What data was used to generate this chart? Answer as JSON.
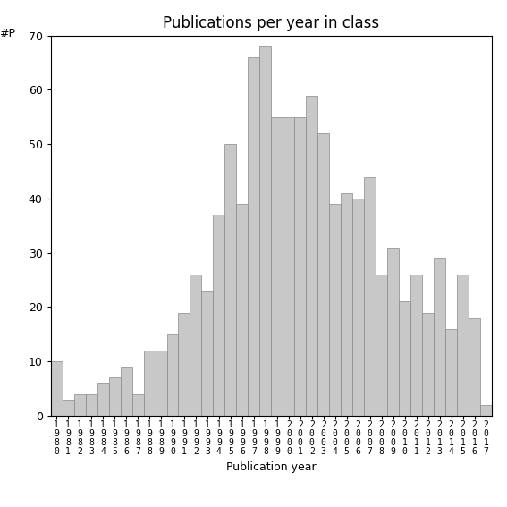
{
  "title": "Publications per year in class",
  "xlabel": "Publication year",
  "ylabel": "#P",
  "years": [
    "1980",
    "1981",
    "1982",
    "1983",
    "1984",
    "1985",
    "1986",
    "1987",
    "1988",
    "1989",
    "1990",
    "1991",
    "1992",
    "1993",
    "1994",
    "1995",
    "1996",
    "1997",
    "1998",
    "1999",
    "2000",
    "2001",
    "2002",
    "2003",
    "2004",
    "2005",
    "2006",
    "2007",
    "2008",
    "2009",
    "2010",
    "2011",
    "2012",
    "2013",
    "2014",
    "2015",
    "2016",
    "2017"
  ],
  "values": [
    10,
    3,
    4,
    4,
    6,
    7,
    9,
    4,
    12,
    12,
    15,
    19,
    26,
    23,
    37,
    50,
    39,
    66,
    68,
    55,
    55,
    55,
    59,
    52,
    39,
    41,
    40,
    44,
    26,
    31,
    21,
    26,
    19,
    29,
    16,
    26,
    18,
    2
  ],
  "bar_color": "#c8c8c8",
  "bar_edgecolor": "#888888",
  "ylim": [
    0,
    70
  ],
  "yticks": [
    0,
    10,
    20,
    30,
    40,
    50,
    60,
    70
  ],
  "background_color": "#ffffff",
  "title_fontsize": 12,
  "axis_label_fontsize": 9,
  "tick_label_fontsize": 7
}
